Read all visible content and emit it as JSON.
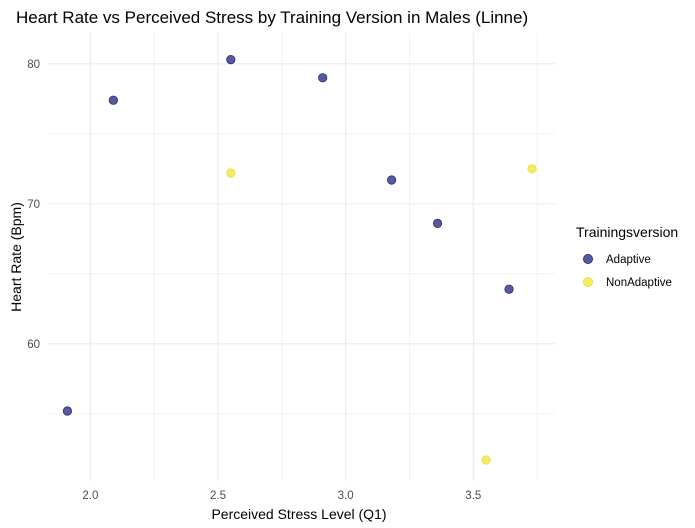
{
  "chart_data": {
    "type": "scatter",
    "title": "Heart Rate vs Perceived Stress by Training Version in Males (Linne)",
    "xlabel": "Perceived Stress Level (Q1)",
    "ylabel": "Heart Rate (Bpm)",
    "xlim": [
      1.83,
      3.82
    ],
    "ylim": [
      50.2,
      82.2
    ],
    "x_ticks": [
      2.0,
      2.5,
      3.0,
      3.5
    ],
    "x_tick_labels": [
      "2.0",
      "2.5",
      "3.0",
      "3.5"
    ],
    "y_ticks": [
      60,
      70,
      80
    ],
    "y_tick_labels": [
      "60",
      "70",
      "80"
    ],
    "grid": true,
    "legend_title": "Trainingsversion",
    "legend_position": "right",
    "series": [
      {
        "name": "Adaptive",
        "color": "#4b4b98",
        "points": [
          {
            "x": 1.91,
            "y": 55.2
          },
          {
            "x": 2.09,
            "y": 77.4
          },
          {
            "x": 2.55,
            "y": 80.3
          },
          {
            "x": 2.91,
            "y": 79.0
          },
          {
            "x": 3.18,
            "y": 71.7
          },
          {
            "x": 3.36,
            "y": 68.6
          },
          {
            "x": 3.64,
            "y": 63.9
          }
        ]
      },
      {
        "name": "NonAdaptive",
        "color": "#f0ea55",
        "points": [
          {
            "x": 2.55,
            "y": 72.2
          },
          {
            "x": 3.55,
            "y": 51.7
          },
          {
            "x": 3.73,
            "y": 72.5
          }
        ]
      }
    ]
  }
}
